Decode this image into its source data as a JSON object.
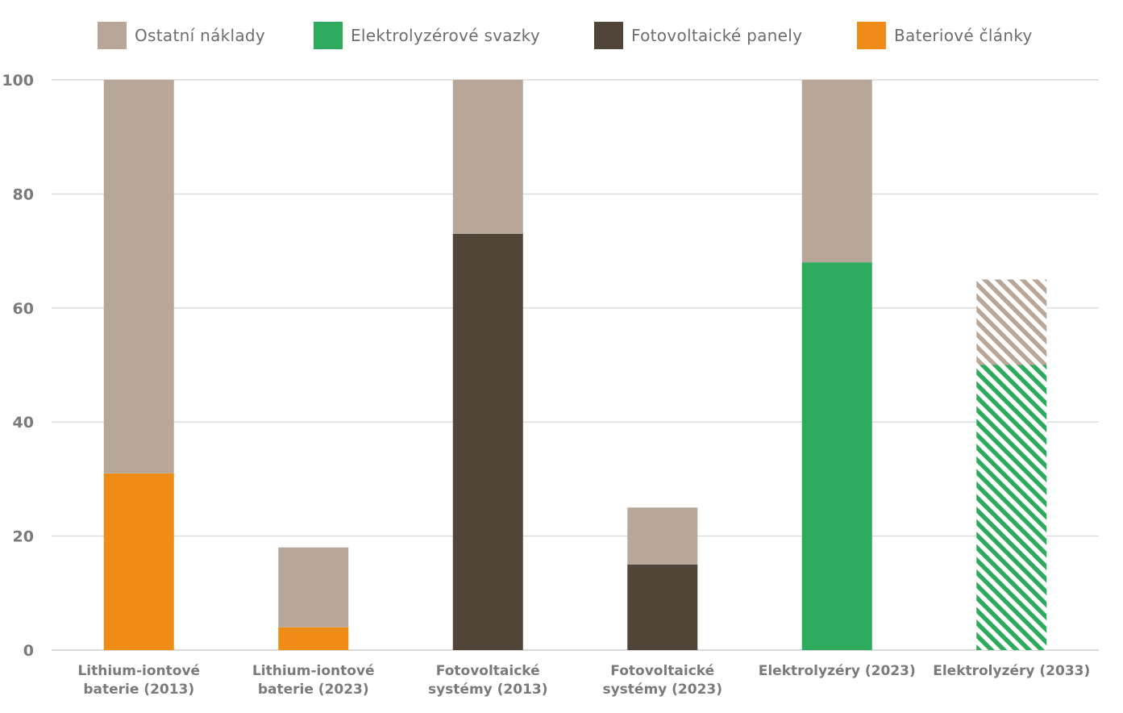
{
  "chart_data": {
    "type": "bar",
    "stacked": true,
    "title": "",
    "xlabel": "",
    "ylabel": "",
    "ylim": [
      0,
      100
    ],
    "yticks": [
      "0",
      "20",
      "40",
      "60",
      "80",
      "100"
    ],
    "grid": true,
    "legend_position": "top",
    "categories": [
      [
        "Lithium-iontové",
        "baterie (2013)"
      ],
      [
        "Lithium-iontové",
        "baterie (2023)"
      ],
      [
        "Fotovoltaické",
        "systémy (2013)"
      ],
      [
        "Fotovoltaické",
        "systémy (2023)"
      ],
      [
        "Elektrolyzéry (2023)"
      ],
      [
        "Elektrolyzéry (2033)"
      ]
    ],
    "legend": [
      {
        "name": "Ostatní náklady",
        "color": "#b8a798"
      },
      {
        "name": "Elektrolyzérové svazky",
        "color": "#2eaa5c"
      },
      {
        "name": "Fotovoltaické panely",
        "color": "#514439"
      },
      {
        "name": "Bateriové články",
        "color": "#ef8c17"
      }
    ],
    "bars": [
      {
        "segments": [
          {
            "series": "Bateriové články",
            "value": 31
          },
          {
            "series": "Ostatní náklady",
            "value": 69
          }
        ],
        "projected": false
      },
      {
        "segments": [
          {
            "series": "Bateriové články",
            "value": 4
          },
          {
            "series": "Ostatní náklady",
            "value": 14
          }
        ],
        "projected": false
      },
      {
        "segments": [
          {
            "series": "Fotovoltaické panely",
            "value": 73
          },
          {
            "series": "Ostatní náklady",
            "value": 27
          }
        ],
        "projected": false
      },
      {
        "segments": [
          {
            "series": "Fotovoltaické panely",
            "value": 15
          },
          {
            "series": "Ostatní náklady",
            "value": 10
          }
        ],
        "projected": false
      },
      {
        "segments": [
          {
            "series": "Elektrolyzérové svazky",
            "value": 68
          },
          {
            "series": "Ostatní náklady",
            "value": 32
          }
        ],
        "projected": false
      },
      {
        "segments": [
          {
            "series": "Elektrolyzérové svazky",
            "value": 50
          },
          {
            "series": "Ostatní náklady",
            "value": 15
          }
        ],
        "projected": true
      }
    ]
  }
}
